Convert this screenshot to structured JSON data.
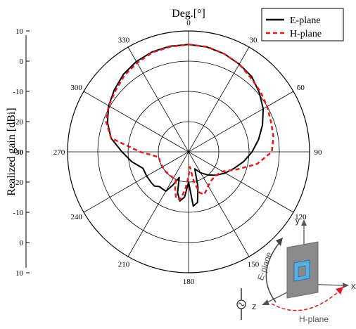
{
  "chart_data": {
    "type": "polar-line",
    "title": "Deg.[°]",
    "radial_label": "Realized gain [dBi]",
    "radial_range": [
      -30,
      10
    ],
    "radial_ticks": [
      10,
      0,
      -10,
      -20,
      -30,
      -20,
      -10,
      0,
      10
    ],
    "angle_ticks": [
      "0",
      "30",
      "60",
      "90",
      "120",
      "150",
      "180",
      "210",
      "240",
      "270",
      "300",
      "330"
    ],
    "grid": true,
    "legend": {
      "placement": "top-right",
      "entries": [
        "E-plane",
        "H-plane"
      ]
    },
    "series": [
      {
        "name": "E-plane",
        "color": "#000000",
        "style": "solid",
        "angles": [
          0,
          10,
          20,
          30,
          40,
          50,
          60,
          70,
          80,
          90,
          100,
          110,
          120,
          130,
          140,
          150,
          160,
          165,
          170,
          175,
          180,
          185,
          190,
          195,
          200,
          205,
          210,
          215,
          220,
          225,
          230,
          240,
          250,
          260,
          270,
          280,
          290,
          300,
          310,
          320,
          330,
          340,
          350
        ],
        "values": [
          5.5,
          5.2,
          4.5,
          3.5,
          2.5,
          0.5,
          -1.5,
          -4,
          -6.5,
          -9,
          -11.5,
          -14,
          -16,
          -18,
          -20,
          -22,
          -24,
          -18,
          -13,
          -12,
          -20,
          -15,
          -13.5,
          -16,
          -21,
          -18,
          -15,
          -15,
          -15,
          -14,
          -14,
          -14,
          -14,
          -11,
          -8,
          -4,
          -1.5,
          0.5,
          2,
          3.5,
          4.5,
          5.2,
          5.5
        ]
      },
      {
        "name": "H-plane",
        "color": "#e41a1c",
        "style": "dashed",
        "angles": [
          0,
          10,
          20,
          30,
          40,
          50,
          60,
          70,
          80,
          90,
          100,
          110,
          120,
          130,
          140,
          150,
          155,
          160,
          165,
          170,
          175,
          180,
          185,
          190,
          195,
          200,
          205,
          210,
          220,
          230,
          240,
          250,
          260,
          270,
          280,
          290,
          300,
          310,
          320,
          330,
          340,
          350
        ],
        "values": [
          5.5,
          5.3,
          4.5,
          3.5,
          2,
          1,
          0,
          -1,
          -1.5,
          -2.5,
          -7,
          -13,
          -17,
          -18,
          -18,
          -17,
          -16,
          -15,
          -16,
          -20,
          -25,
          -22,
          -17.5,
          -14,
          -14,
          -17,
          -20,
          -20,
          -20,
          -20,
          -20,
          -20,
          -20,
          -14,
          -4,
          -1,
          0.5,
          1.5,
          3,
          4,
          5,
          5.3
        ]
      }
    ]
  },
  "inset": {
    "e_plane_label": "E-plane",
    "h_plane_label": "H-plane",
    "x_axis": "x",
    "y_axis": "y",
    "z_axis": "z"
  }
}
